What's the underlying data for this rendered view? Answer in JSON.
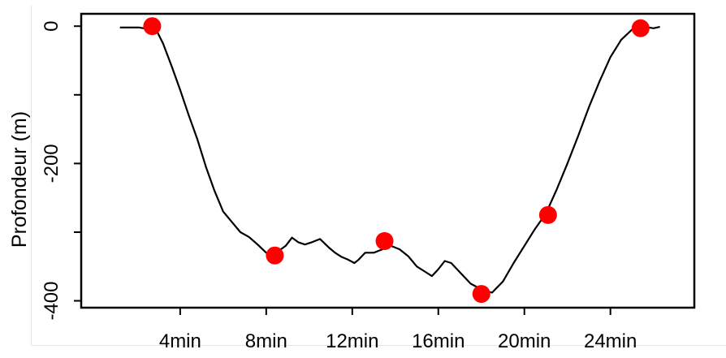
{
  "chart_data": {
    "type": "line",
    "title": "",
    "xlabel": "",
    "ylabel": "Profondeur (m)",
    "xlim": [
      -0.6,
      27.9
    ],
    "ylim": [
      -410,
      18
    ],
    "x_ticks": [
      {
        "value": 4,
        "label": "4min"
      },
      {
        "value": 8,
        "label": "8min"
      },
      {
        "value": 12,
        "label": "12min"
      },
      {
        "value": 16,
        "label": "16min"
      },
      {
        "value": 20,
        "label": "20min"
      },
      {
        "value": 24,
        "label": "24min"
      }
    ],
    "y_ticks": [
      {
        "value": 0,
        "label": "0"
      },
      {
        "value": -100,
        "label": ""
      },
      {
        "value": -200,
        "label": "-200"
      },
      {
        "value": -300,
        "label": ""
      },
      {
        "value": -400,
        "label": "-400"
      }
    ],
    "grid": false,
    "line_color": "#000000",
    "marker_color": "#ff0000",
    "series": [
      {
        "x": [
          1.2,
          1.8,
          2.1,
          2.3,
          2.5,
          2.7,
          2.8,
          3.2,
          3.6,
          4.0,
          4.4,
          4.8,
          5.2,
          5.6,
          6.0,
          6.4,
          6.8,
          7.2,
          7.6,
          8.0,
          8.3,
          8.6,
          8.9,
          9.2,
          9.5,
          9.8,
          10.1,
          10.5,
          10.9,
          11.2,
          11.5,
          11.8,
          12.1,
          12.3,
          12.6,
          13.0,
          13.4,
          13.8,
          14.2,
          14.6,
          15.0,
          15.4,
          15.7,
          16.0,
          16.3,
          16.6,
          16.9,
          17.2,
          17.5,
          17.8,
          18.1,
          18.5,
          19.0,
          19.5,
          20.0,
          20.5,
          21.0,
          21.5,
          22.0,
          22.5,
          23.0,
          23.5,
          24.0,
          24.5,
          25.0,
          25.3,
          25.6,
          26.0,
          26.3
        ],
        "y": [
          -2,
          -2,
          -2,
          -3,
          -1,
          0,
          0,
          -25,
          -58,
          -93,
          -130,
          -165,
          -205,
          -240,
          -270,
          -285,
          -300,
          -307,
          -318,
          -330,
          -336,
          -327,
          -320,
          -308,
          -315,
          -318,
          -315,
          -310,
          -322,
          -330,
          -336,
          -340,
          -345,
          -340,
          -330,
          -330,
          -325,
          -320,
          -325,
          -335,
          -350,
          -358,
          -364,
          -354,
          -342,
          -345,
          -355,
          -365,
          -375,
          -380,
          -385,
          -388,
          -372,
          -345,
          -320,
          -295,
          -273,
          -238,
          -200,
          -160,
          -118,
          -80,
          -45,
          -20,
          -5,
          -2,
          -1,
          -3,
          -1
        ]
      }
    ],
    "points": [
      {
        "x": 2.7,
        "y": 0
      },
      {
        "x": 8.4,
        "y": -334
      },
      {
        "x": 13.5,
        "y": -313
      },
      {
        "x": 18.0,
        "y": -390
      },
      {
        "x": 21.1,
        "y": -275
      },
      {
        "x": 25.4,
        "y": -3
      }
    ]
  }
}
